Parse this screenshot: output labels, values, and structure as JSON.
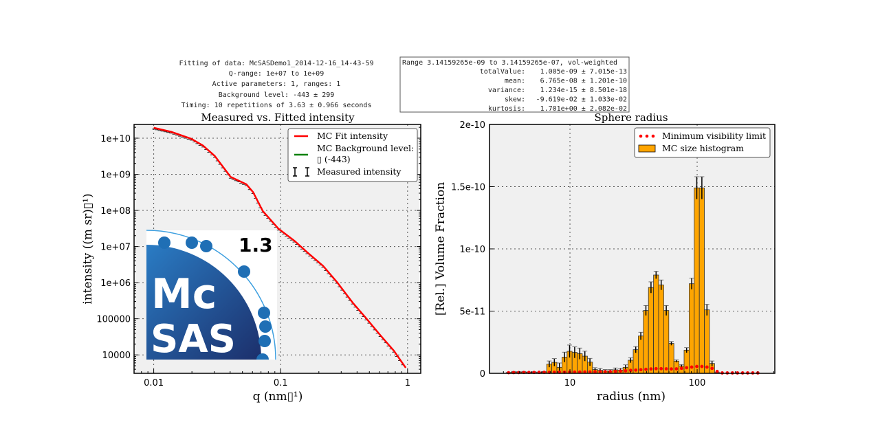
{
  "info_left": {
    "line1": "Fitting of data: McSASDemo1_2014-12-16_14-43-59",
    "line2": "Q-range: 1e+07 to 1e+09",
    "line3": "Active parameters: 1, ranges: 1",
    "line4": "Background level: -443 ± 299",
    "line5": "Timing: 10 repetitions of 3.63 ± 0.966 seconds"
  },
  "info_right": {
    "header": "Range 3.14159265e-09 to 3.14159265e-07, vol-weighted",
    "rows": [
      {
        "label": "totalValue:",
        "value": "1.005e-09 ± 7.015e-13"
      },
      {
        "label": "mean:",
        "value": "6.765e-08 ± 1.201e-10"
      },
      {
        "label": "variance:",
        "value": "1.234e-15 ± 8.501e-18"
      },
      {
        "label": "skew:",
        "value": "-9.619e-02 ± 1.033e-02"
      },
      {
        "label": "kurtosis:",
        "value": "1.701e+00 ± 2.082e-02"
      }
    ]
  },
  "logo": {
    "text_top": "Mc",
    "text_bottom": "SAS",
    "version": "1.3",
    "color": "#1f6fb5"
  },
  "chart_data": [
    {
      "type": "line",
      "title": "Measured vs. Fitted intensity",
      "xlabel": "q (nm▯¹)",
      "ylabel": "intensity ((m sr)▯¹)",
      "xscale": "log",
      "yscale": "log",
      "xlim": [
        0.007,
        1.27
      ],
      "ylim": [
        3090,
        24000000000.0
      ],
      "xticks": [
        {
          "v": 0.01,
          "label": "0.01"
        },
        {
          "v": 0.1,
          "label": "0.1"
        },
        {
          "v": 1,
          "label": "1"
        }
      ],
      "yticks": [
        {
          "v": 10000000000.0,
          "label": "1e+10"
        },
        {
          "v": 1000000000.0,
          "label": "1e+09"
        },
        {
          "v": 100000000.0,
          "label": "1e+08"
        },
        {
          "v": 10000000.0,
          "label": "1e+07"
        },
        {
          "v": 1000000.0,
          "label": "1e+06"
        },
        {
          "v": 100000.0,
          "label": "100000"
        },
        {
          "v": 10000.0,
          "label": "10000"
        }
      ],
      "grid": true,
      "legend_position": "top-right",
      "legend": [
        {
          "label": "MC Fit intensity",
          "color": "#ff0000",
          "kind": "line"
        },
        {
          "label": "MC Background level:",
          "label2": "▯ (-443)",
          "color": "#008000",
          "kind": "line"
        },
        {
          "label": "Measured intensity",
          "color": "#000000",
          "kind": "errorbar"
        }
      ],
      "x": [
        0.01,
        0.0137,
        0.0198,
        0.0245,
        0.0303,
        0.0403,
        0.0536,
        0.0607,
        0.0723,
        0.0962,
        0.128,
        0.162,
        0.216,
        0.277,
        0.369,
        0.473,
        0.61,
        0.78,
        0.967
      ],
      "y": [
        19400000000.0,
        15000000000.0,
        9600000000.0,
        6200000000.0,
        3200000000.0,
        850000000.0,
        530000000.0,
        320000000.0,
        96000000.0,
        31000000.0,
        14500000.0,
        6900000.0,
        2900000.0,
        1050000.0,
        280000.0,
        102000.0,
        35000.0,
        13000.0,
        4400.0
      ]
    },
    {
      "type": "bar",
      "title": "Sphere radius",
      "xlabel": "radius (nm)",
      "ylabel": "[Rel.] Volume Fraction",
      "xscale": "log",
      "xlim": [
        2.33,
        408
      ],
      "ylim": [
        0,
        2e-10
      ],
      "xticks": [
        {
          "v": 10,
          "label": "10"
        },
        {
          "v": 100,
          "label": "100"
        }
      ],
      "yticks": [
        {
          "v": 0,
          "label": "0"
        },
        {
          "v": 5e-11,
          "label": "5e-11"
        },
        {
          "v": 1e-10,
          "label": "1e-10"
        },
        {
          "v": 1.5e-10,
          "label": "1.5e-10"
        },
        {
          "v": 2e-10,
          "label": "2e-10"
        }
      ],
      "grid": true,
      "legend_position": "top-right",
      "legend": [
        {
          "label": "Minimum visibility limit",
          "color": "#ff0000",
          "kind": "dots"
        },
        {
          "label": "MC size histogram",
          "color": "#ffa500",
          "kind": "bar"
        }
      ],
      "bins": {
        "min": 3.14159,
        "max": 314.159,
        "count": 50
      },
      "values": [
        3e-13,
        1e-12,
        8e-13,
        1e-12,
        5e-13,
        8e-13,
        5e-13,
        1e-12,
        7.4e-12,
        8.8e-12,
        4.8e-12,
        1.3e-11,
        1.77e-11,
        1.68e-11,
        1.58e-11,
        1.38e-11,
        9e-12,
        3e-12,
        2.4e-12,
        2e-12,
        2e-12,
        2.8e-12,
        2.5e-12,
        4.8e-12,
        1.05e-11,
        1.9e-11,
        3e-11,
        5.05e-11,
        6.9e-11,
        7.9e-11,
        7.1e-11,
        5.05e-11,
        2.4e-11,
        9.8e-12,
        6e-12,
        1.86e-11,
        7.2e-11,
        1.49e-10,
        1.49e-10,
        5.1e-11,
        7.9e-12,
        5e-13,
        0,
        0,
        0,
        0,
        0,
        0,
        0,
        0
      ],
      "errors": [
        5e-13,
        5e-13,
        5e-13,
        5e-13,
        5e-13,
        5e-13,
        5e-13,
        5e-13,
        2.5e-12,
        3e-12,
        3.5e-12,
        4e-12,
        5e-12,
        4.5e-12,
        4.5e-12,
        4e-12,
        3e-12,
        1.5e-12,
        1.5e-12,
        1e-12,
        1e-12,
        1.5e-12,
        1.5e-12,
        2e-12,
        2e-12,
        2.5e-12,
        3e-12,
        4e-12,
        4.5e-12,
        3e-12,
        4e-12,
        4e-12,
        1.5e-12,
        1e-12,
        1e-12,
        2e-12,
        4.5e-12,
        9e-12,
        9e-12,
        4.5e-12,
        2e-12,
        5e-13,
        0,
        0,
        0,
        0,
        0,
        0,
        0,
        0
      ],
      "visibility_limit": [
        5e-13,
        6e-13,
        6e-13,
        7e-13,
        7e-13,
        7e-13,
        8e-13,
        8e-13,
        8e-13,
        9e-13,
        9e-13,
        9e-13,
        1e-12,
        1e-12,
        1e-12,
        1.1e-12,
        1.1e-12,
        1.2e-12,
        1.2e-12,
        1.3e-12,
        1.4e-12,
        1.5e-12,
        1.8e-12,
        2e-12,
        2.4e-12,
        2.6e-12,
        2.9e-12,
        3.2e-12,
        3.5e-12,
        3.7e-12,
        3.7e-12,
        3.6e-12,
        3.5e-12,
        3.6e-12,
        4e-12,
        4.5e-12,
        5e-12,
        5.5e-12,
        5.5e-12,
        5e-12,
        4e-12,
        1.5e-12,
        3e-13,
        3e-13,
        3e-13,
        3e-13,
        3e-13,
        3e-13,
        3e-13,
        3e-13
      ]
    }
  ]
}
